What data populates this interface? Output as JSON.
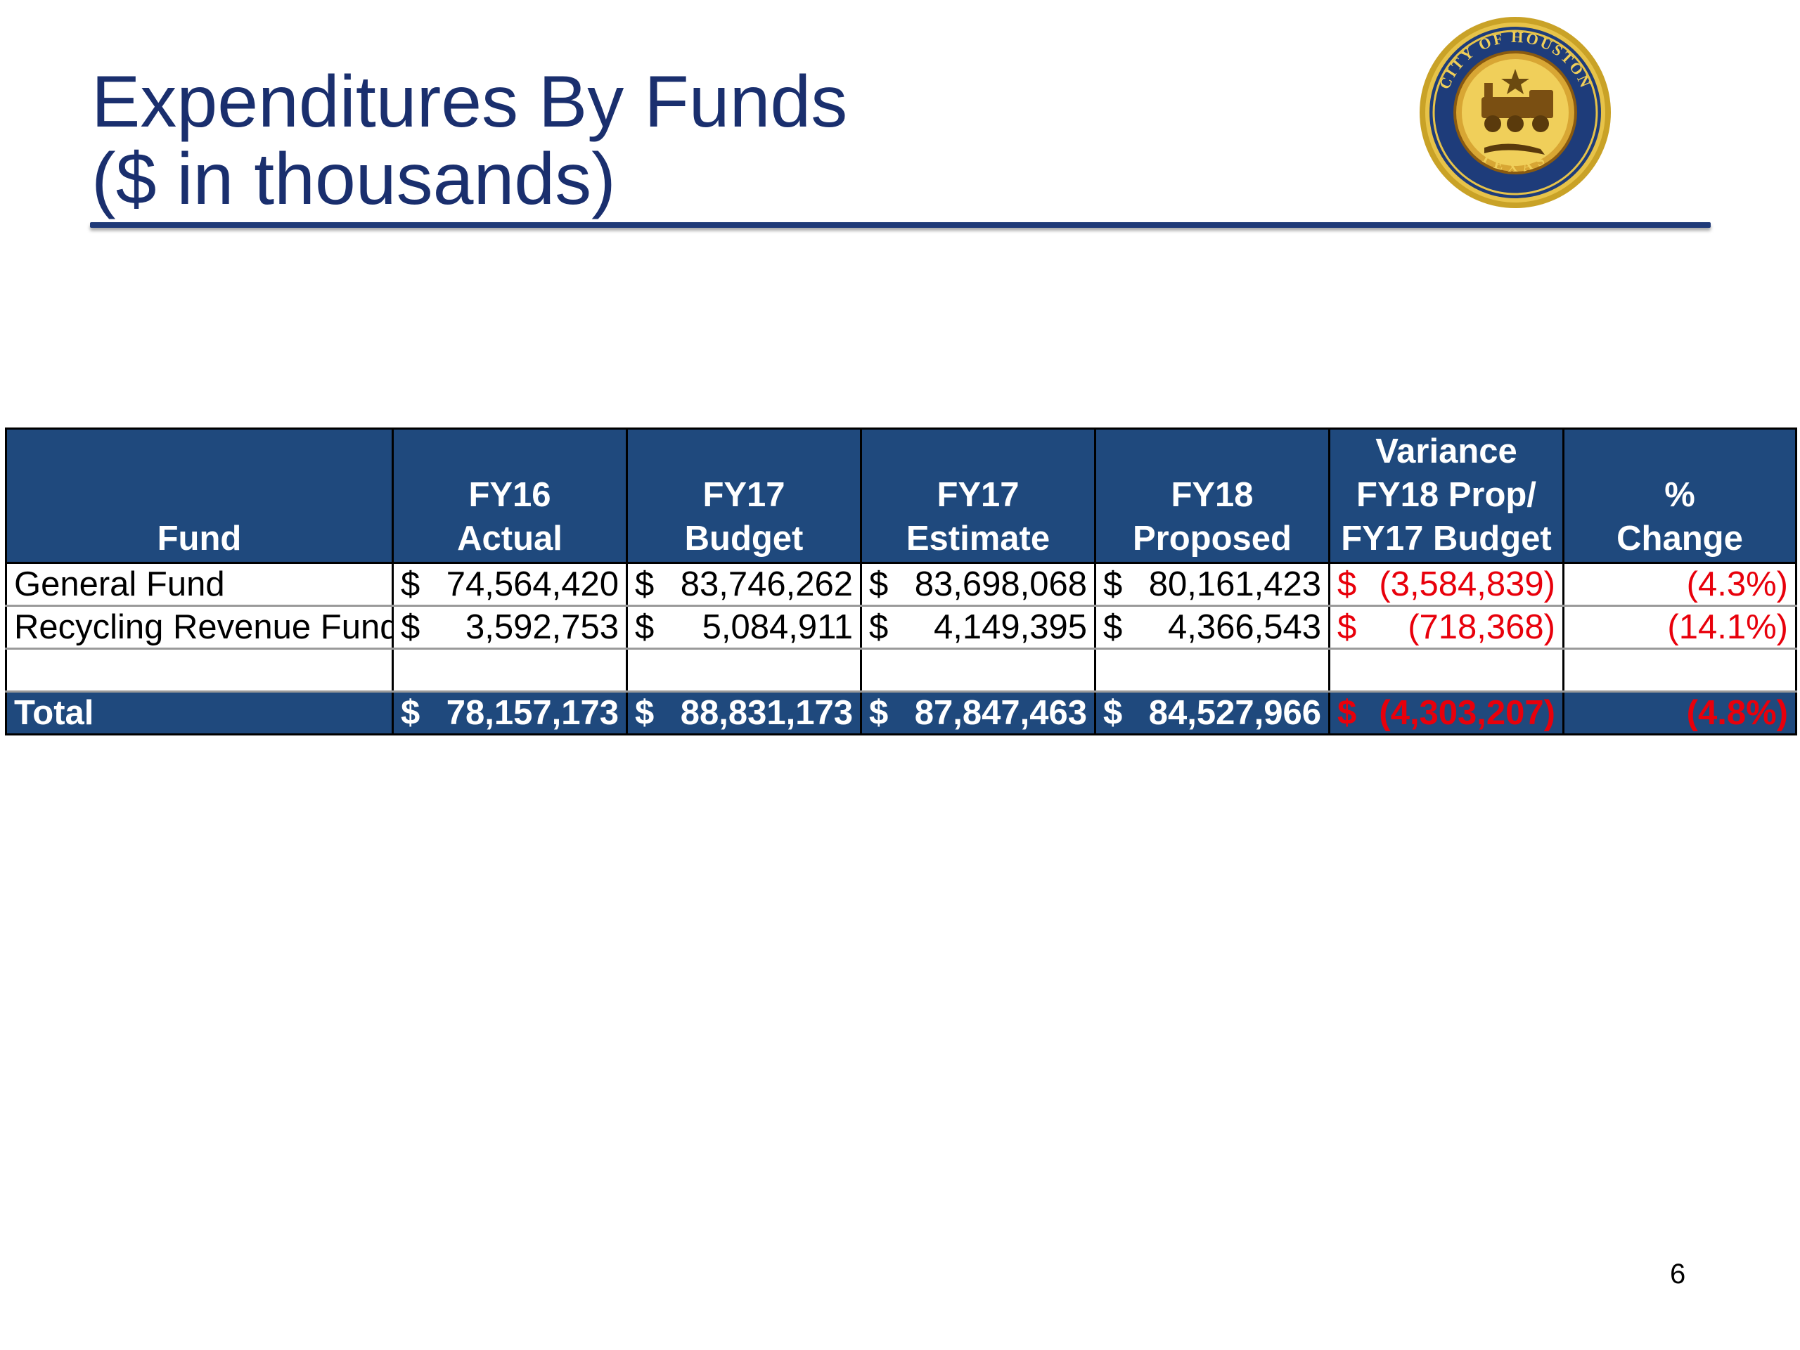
{
  "slide": {
    "title_line1": "Expenditures By Funds",
    "title_line2": "($ in thousands)",
    "page_number": "6"
  },
  "seal": {
    "text_top": "CITY OF HOUSTON",
    "text_bottom": "TEXAS"
  },
  "table": {
    "headers": [
      {
        "lines": [
          "Fund"
        ]
      },
      {
        "lines": [
          "FY16",
          "Actual"
        ]
      },
      {
        "lines": [
          "FY17",
          "Budget"
        ]
      },
      {
        "lines": [
          "FY17",
          "Estimate"
        ]
      },
      {
        "lines": [
          "FY18",
          "Proposed"
        ]
      },
      {
        "lines": [
          "Variance",
          "FY18 Prop/",
          "FY17 Budget"
        ]
      },
      {
        "lines": [
          "%",
          "Change"
        ]
      }
    ],
    "rows": [
      {
        "fund": "General Fund",
        "fy16_sym": "$",
        "fy16": "74,564,420",
        "fy17b_sym": "$",
        "fy17b": "83,746,262",
        "fy17e_sym": "$",
        "fy17e": "83,698,068",
        "fy18_sym": "$",
        "fy18": "80,161,423",
        "var_sym": "$",
        "var": "(3,584,839)",
        "pct": "(4.3%)"
      },
      {
        "fund": "Recycling Revenue Fund",
        "fy16_sym": "$",
        "fy16": "3,592,753",
        "fy17b_sym": "$",
        "fy17b": "5,084,911",
        "fy17e_sym": "$",
        "fy17e": "4,149,395",
        "fy18_sym": "$",
        "fy18": "4,366,543",
        "var_sym": "$",
        "var": "(718,368)",
        "pct": "(14.1%)"
      }
    ],
    "total": {
      "fund": "Total",
      "fy16_sym": "$",
      "fy16": "78,157,173",
      "fy17b_sym": "$",
      "fy17b": "88,831,173",
      "fy17e_sym": "$",
      "fy17e": "87,847,463",
      "fy18_sym": "$",
      "fy18": "84,527,966",
      "var_sym": "$",
      "var": "(4,303,207)",
      "pct": "(4.8%)"
    }
  },
  "colors": {
    "title": "#1a2f6e",
    "header_bg": "#1f497d",
    "negative": "#e8000b"
  }
}
